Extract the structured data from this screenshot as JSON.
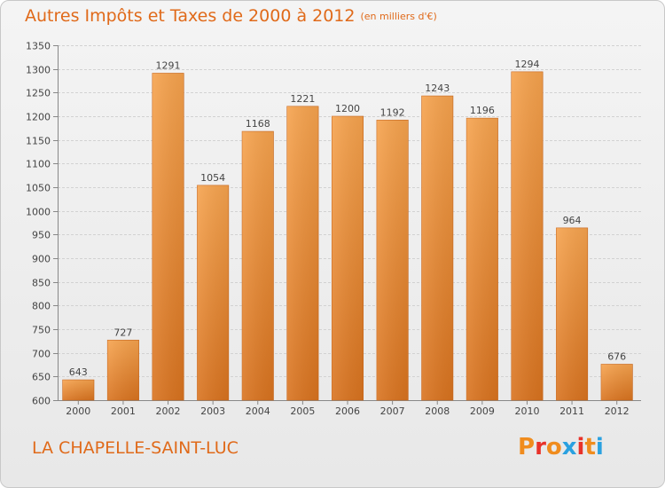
{
  "title": {
    "main": "Autres Impôts et Taxes de 2000 à 2012",
    "unit": "(en milliers d'€)"
  },
  "location": "LA CHAPELLE-SAINT-LUC",
  "logo_text": "Proxiti",
  "logo_colors": [
    "#f08c1e",
    "#e8322a",
    "#f08c1e",
    "#2aa1e0",
    "#e8322a",
    "#f08c1e",
    "#2aa1e0"
  ],
  "colors": {
    "bar_top": "#f6a34e",
    "bar_bottom": "#d9731f",
    "accent": "#e06a1a"
  },
  "chart_data": {
    "type": "bar",
    "title": "Autres Impôts et Taxes de 2000 à 2012",
    "subtitle": "(en milliers d'€)",
    "xlabel": "",
    "ylabel": "",
    "categories": [
      "2000",
      "2001",
      "2002",
      "2003",
      "2004",
      "2005",
      "2006",
      "2007",
      "2008",
      "2009",
      "2010",
      "2011",
      "2012"
    ],
    "values": [
      643,
      727,
      1291,
      1054,
      1168,
      1221,
      1200,
      1192,
      1243,
      1196,
      1294,
      964,
      676
    ],
    "ylim": [
      600,
      1350
    ],
    "yticks": [
      600,
      650,
      700,
      750,
      800,
      850,
      900,
      950,
      1000,
      1050,
      1100,
      1150,
      1200,
      1250,
      1300,
      1350
    ],
    "grid": true,
    "legend": "none"
  }
}
